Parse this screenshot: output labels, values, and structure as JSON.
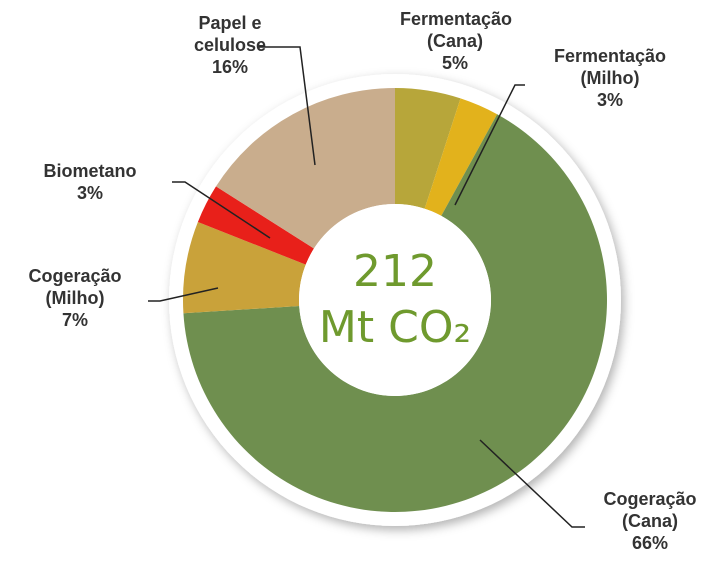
{
  "chart_data": {
    "type": "donut",
    "center_value": "212",
    "center_unit": "Mt CO₂",
    "categories": [
      "Fermentação (Cana)",
      "Fermentação (Milho)",
      "Cogeração (Cana)",
      "Cogeração (Milho)",
      "Biometano",
      "Papel e celulose"
    ],
    "values": [
      5,
      3,
      66,
      7,
      3,
      16
    ],
    "value_labels": [
      "5%",
      "3%",
      "66%",
      "7%",
      "3%",
      "16%"
    ],
    "colors": [
      "#b7a63a",
      "#e2b21c",
      "#6f8f4f",
      "#c9a23a",
      "#e8201a",
      "#c9ad8d"
    ]
  }
}
